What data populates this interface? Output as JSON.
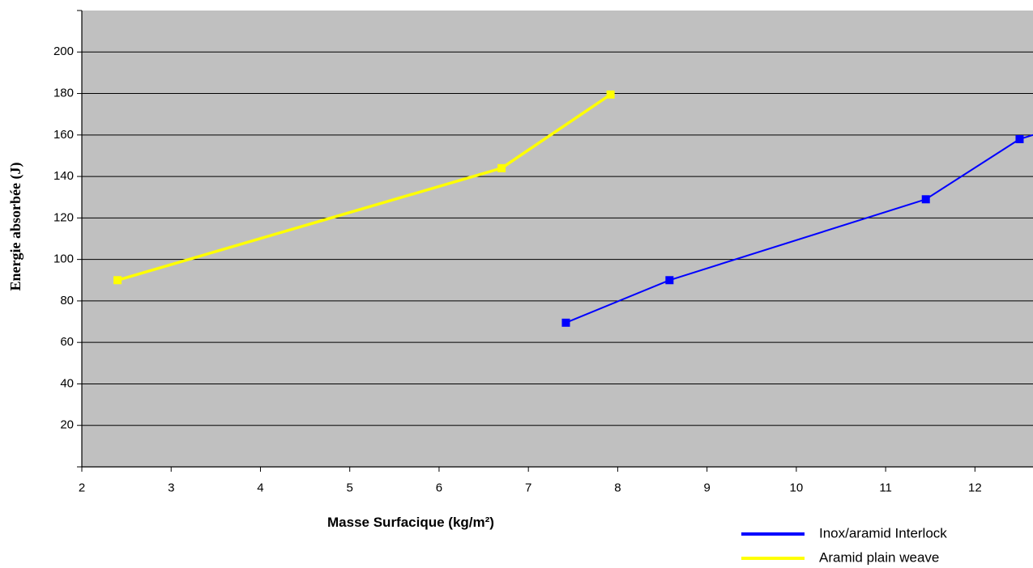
{
  "chart_data": {
    "type": "line",
    "title": "",
    "xlabel": "Masse Surfacique (kg/m²)",
    "ylabel": "Energie absorbée (J)",
    "xlim": [
      2,
      12.65
    ],
    "ylim": [
      0,
      220
    ],
    "x_ticks": [
      "2",
      "3",
      "4",
      "5",
      "6",
      "7",
      "8",
      "9",
      "10",
      "11",
      "12"
    ],
    "y_ticks": [
      "20",
      "40",
      "60",
      "80",
      "100",
      "120",
      "140",
      "160",
      "180",
      "200"
    ],
    "grid": "horizontal",
    "plot_background": "#c0c0c0",
    "legend_position": "bottom-right",
    "series": [
      {
        "name": "Inox/aramid Interlock",
        "color": "#0000ff",
        "marker": "square",
        "points": [
          [
            7.42,
            69.5
          ],
          [
            8.58,
            90
          ],
          [
            11.45,
            129
          ],
          [
            12.5,
            158
          ],
          [
            12.65,
            160
          ]
        ],
        "marker_count": 4
      },
      {
        "name": "Aramid plain weave",
        "color": "#ffff00",
        "marker": "square",
        "points": [
          [
            2.4,
            90
          ],
          [
            6.7,
            144
          ],
          [
            7.92,
            179.5
          ]
        ],
        "marker_count": 3
      }
    ]
  }
}
